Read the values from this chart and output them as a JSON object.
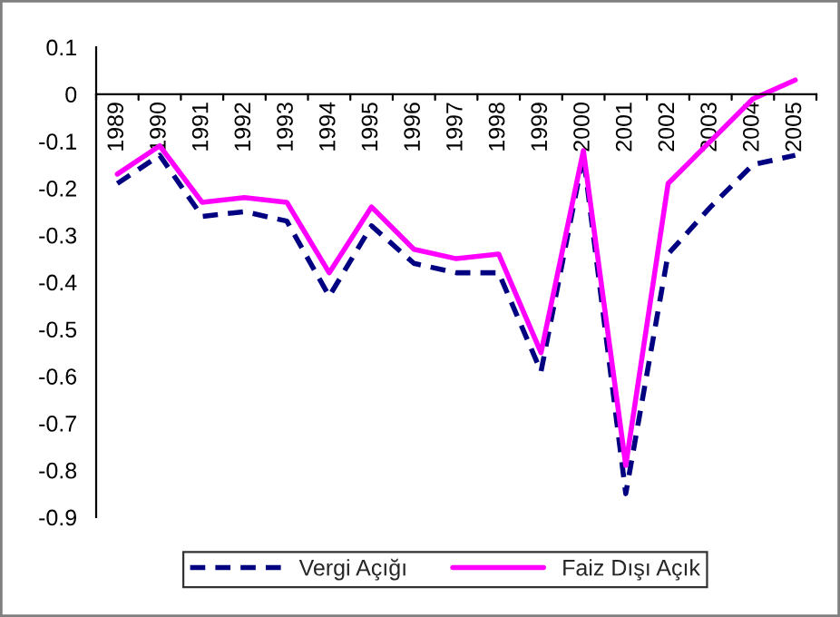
{
  "chart_data": {
    "type": "line",
    "categories": [
      "1989",
      "1990",
      "1991",
      "1992",
      "1993",
      "1994",
      "1995",
      "1996",
      "1997",
      "1998",
      "1999",
      "2000",
      "2001",
      "2002",
      "2003",
      "2004",
      "2005"
    ],
    "series": [
      {
        "name": "Vergi Açığı",
        "color": "#000080",
        "line_style": "dashed",
        "values": [
          -0.19,
          -0.13,
          -0.26,
          -0.25,
          -0.27,
          -0.43,
          -0.28,
          -0.36,
          -0.38,
          -0.38,
          -0.59,
          -0.13,
          -0.85,
          -0.34,
          -0.24,
          -0.15,
          -0.13
        ]
      },
      {
        "name": "Faiz Dışı Açık",
        "color": "#ff00ff",
        "line_style": "solid",
        "values": [
          -0.17,
          -0.11,
          -0.23,
          -0.22,
          -0.23,
          -0.38,
          -0.24,
          -0.33,
          -0.35,
          -0.34,
          -0.55,
          -0.12,
          -0.79,
          -0.19,
          -0.1,
          -0.01,
          0.03
        ]
      }
    ],
    "ylim": [
      -0.9,
      0.1
    ],
    "yticks": [
      {
        "value": 0.1,
        "label": "0.1"
      },
      0,
      {
        "value": -0.1,
        "label": "-0.1"
      },
      {
        "value": -0.2,
        "label": "-0.2"
      },
      {
        "value": -0.3,
        "label": "-0.3"
      },
      {
        "value": -0.4,
        "label": "-0.4"
      },
      {
        "value": -0.5,
        "label": "-0.5"
      },
      {
        "value": -0.6,
        "label": "-0.6"
      },
      {
        "value": -0.7,
        "label": "-0.7"
      },
      {
        "value": -0.8,
        "label": "-0.8"
      },
      {
        "value": -0.9,
        "label": "-0.9"
      }
    ],
    "grid": false,
    "legend": "bottom",
    "marker": "none"
  }
}
